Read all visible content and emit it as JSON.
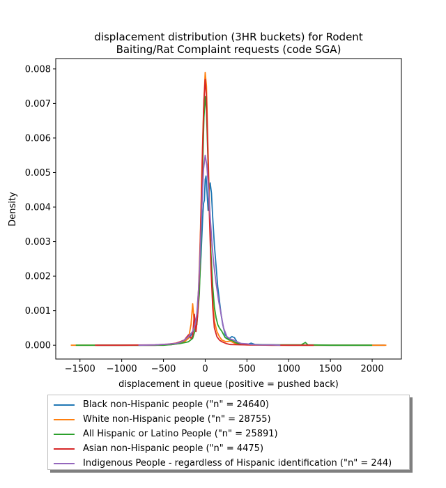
{
  "chart_data": {
    "type": "line",
    "title": "displacement distribution (3HR buckets) for Rodent\nBaiting/Rat Complaint requests (code SGA)",
    "xlabel": "displacement in queue (positive = pushed back)",
    "ylabel": "Density",
    "xlim": [
      -1790,
      2350
    ],
    "ylim": [
      -0.0004,
      0.0083
    ],
    "xticks": [
      -1500,
      -1000,
      -500,
      0,
      500,
      1000,
      1500,
      2000
    ],
    "xtick_labels": [
      "−1500",
      "−1000",
      "−500",
      "0",
      "500",
      "1000",
      "1500",
      "2000"
    ],
    "yticks": [
      0.0,
      0.001,
      0.002,
      0.003,
      0.004,
      0.005,
      0.006,
      0.007,
      0.008
    ],
    "ytick_labels": [
      "0.000",
      "0.001",
      "0.002",
      "0.003",
      "0.004",
      "0.005",
      "0.006",
      "0.007",
      "0.008"
    ],
    "grid": false,
    "legend_position": "bottom-center",
    "series": [
      {
        "name": "Black non-Hispanic people (\"n\" = 24640)",
        "color": "#1f77b4",
        "points": [
          [
            -1300,
            0
          ],
          [
            -600,
            0
          ],
          [
            -400,
            2e-05
          ],
          [
            -300,
            6e-05
          ],
          [
            -200,
            0.0002
          ],
          [
            -150,
            0.00035
          ],
          [
            -100,
            0.0008
          ],
          [
            -75,
            0.0015
          ],
          [
            -50,
            0.0026
          ],
          [
            -30,
            0.0037
          ],
          [
            -20,
            0.0041
          ],
          [
            -10,
            0.0042
          ],
          [
            0,
            0.0048
          ],
          [
            10,
            0.0049
          ],
          [
            25,
            0.0043
          ],
          [
            35,
            0.0039
          ],
          [
            45,
            0.0044
          ],
          [
            60,
            0.0047
          ],
          [
            75,
            0.0044
          ],
          [
            90,
            0.0037
          ],
          [
            110,
            0.0029
          ],
          [
            130,
            0.0023
          ],
          [
            150,
            0.0017
          ],
          [
            170,
            0.0013
          ],
          [
            190,
            0.0009
          ],
          [
            210,
            0.0006
          ],
          [
            240,
            0.0003
          ],
          [
            280,
            0.00018
          ],
          [
            320,
            0.00025
          ],
          [
            350,
            0.00022
          ],
          [
            380,
            0.0001
          ],
          [
            420,
            4e-05
          ],
          [
            500,
            2e-05
          ],
          [
            550,
            6e-05
          ],
          [
            600,
            2e-05
          ],
          [
            800,
            1e-05
          ],
          [
            1000,
            0
          ],
          [
            1600,
            0
          ],
          [
            2150,
            0
          ]
        ]
      },
      {
        "name": "White non-Hispanic people (\"n\" = 28755)",
        "color": "#ff7f0e",
        "points": [
          [
            -1610,
            0
          ],
          [
            -1200,
            0
          ],
          [
            -600,
            0
          ],
          [
            -400,
            2e-05
          ],
          [
            -300,
            5e-05
          ],
          [
            -250,
            0.0001
          ],
          [
            -200,
            0.0002
          ],
          [
            -170,
            0.0006
          ],
          [
            -150,
            0.0012
          ],
          [
            -140,
            0.0009
          ],
          [
            -120,
            0.0004
          ],
          [
            -100,
            0.0008
          ],
          [
            -80,
            0.0016
          ],
          [
            -60,
            0.003
          ],
          [
            -40,
            0.005
          ],
          [
            -20,
            0.0068
          ],
          [
            0,
            0.0079
          ],
          [
            15,
            0.0075
          ],
          [
            30,
            0.006
          ],
          [
            50,
            0.0042
          ],
          [
            70,
            0.0025
          ],
          [
            90,
            0.0013
          ],
          [
            110,
            0.0007
          ],
          [
            140,
            0.0004
          ],
          [
            170,
            0.00025
          ],
          [
            200,
            0.00015
          ],
          [
            250,
            0.0001
          ],
          [
            300,
            0.00012
          ],
          [
            350,
            6e-05
          ],
          [
            400,
            2e-05
          ],
          [
            500,
            1e-05
          ],
          [
            800,
            0
          ],
          [
            1500,
            0
          ],
          [
            2170,
            0
          ]
        ]
      },
      {
        "name": "All Hispanic or Latino People (\"n\" = 25891)",
        "color": "#2ca02c",
        "points": [
          [
            -1550,
            0
          ],
          [
            -1000,
            0
          ],
          [
            -500,
            0
          ],
          [
            -400,
            2e-05
          ],
          [
            -300,
            5e-05
          ],
          [
            -200,
            0.0001
          ],
          [
            -150,
            0.0002
          ],
          [
            -100,
            0.0006
          ],
          [
            -70,
            0.0015
          ],
          [
            -50,
            0.003
          ],
          [
            -30,
            0.0052
          ],
          [
            -15,
            0.0066
          ],
          [
            0,
            0.0072
          ],
          [
            15,
            0.0068
          ],
          [
            30,
            0.0056
          ],
          [
            50,
            0.004
          ],
          [
            70,
            0.0026
          ],
          [
            90,
            0.0017
          ],
          [
            110,
            0.0011
          ],
          [
            130,
            0.0008
          ],
          [
            150,
            0.0006
          ],
          [
            170,
            0.0005
          ],
          [
            200,
            0.0004
          ],
          [
            240,
            0.00022
          ],
          [
            280,
            0.00016
          ],
          [
            320,
            0.00014
          ],
          [
            360,
            8e-05
          ],
          [
            420,
            3e-05
          ],
          [
            500,
            2e-05
          ],
          [
            800,
            1e-05
          ],
          [
            1150,
            1e-05
          ],
          [
            1200,
            8e-05
          ],
          [
            1230,
            1e-05
          ],
          [
            1500,
            0
          ],
          [
            2000,
            0
          ]
        ]
      },
      {
        "name": "Asian non-Hispanic people (\"n\" = 4475)",
        "color": "#d62728",
        "points": [
          [
            -1320,
            0
          ],
          [
            -1000,
            0
          ],
          [
            -600,
            1e-05
          ],
          [
            -450,
            3e-05
          ],
          [
            -350,
            6e-05
          ],
          [
            -300,
            0.0001
          ],
          [
            -250,
            0.00015
          ],
          [
            -200,
            0.0003
          ],
          [
            -170,
            0.0002
          ],
          [
            -150,
            0.00028
          ],
          [
            -130,
            0.0009
          ],
          [
            -110,
            0.0004
          ],
          [
            -90,
            0.0009
          ],
          [
            -70,
            0.002
          ],
          [
            -50,
            0.0038
          ],
          [
            -30,
            0.0058
          ],
          [
            -15,
            0.0071
          ],
          [
            0,
            0.0077
          ],
          [
            15,
            0.0072
          ],
          [
            30,
            0.0058
          ],
          [
            50,
            0.0038
          ],
          [
            70,
            0.0022
          ],
          [
            90,
            0.0011
          ],
          [
            110,
            0.0005
          ],
          [
            140,
            0.00025
          ],
          [
            170,
            0.00015
          ],
          [
            200,
            0.0001
          ],
          [
            250,
            5e-05
          ],
          [
            300,
            2e-05
          ],
          [
            500,
            1e-05
          ],
          [
            800,
            0
          ],
          [
            1300,
            0
          ]
        ]
      },
      {
        "name": "Indigenous People - regardless of Hispanic identification (\"n\" = 244)",
        "color": "#9467bd",
        "points": [
          [
            -800,
            0
          ],
          [
            -600,
            1e-05
          ],
          [
            -450,
            3e-05
          ],
          [
            -350,
            5e-05
          ],
          [
            -300,
            8e-05
          ],
          [
            -250,
            0.00015
          ],
          [
            -200,
            0.00025
          ],
          [
            -150,
            0.0004
          ],
          [
            -120,
            0.0006
          ],
          [
            -100,
            0.0009
          ],
          [
            -80,
            0.0016
          ],
          [
            -60,
            0.0027
          ],
          [
            -40,
            0.004
          ],
          [
            -20,
            0.0051
          ],
          [
            0,
            0.0055
          ],
          [
            20,
            0.0052
          ],
          [
            40,
            0.0045
          ],
          [
            60,
            0.0037
          ],
          [
            80,
            0.003
          ],
          [
            100,
            0.0024
          ],
          [
            130,
            0.0018
          ],
          [
            160,
            0.0013
          ],
          [
            190,
            0.0009
          ],
          [
            220,
            0.0005
          ],
          [
            260,
            0.00025
          ],
          [
            300,
            0.00018
          ],
          [
            340,
            0.00015
          ],
          [
            380,
            0.0001
          ],
          [
            430,
            5e-05
          ],
          [
            500,
            4e-05
          ],
          [
            550,
            2e-05
          ],
          [
            650,
            1e-05
          ],
          [
            800,
            1e-05
          ],
          [
            900,
            0
          ]
        ]
      }
    ]
  }
}
